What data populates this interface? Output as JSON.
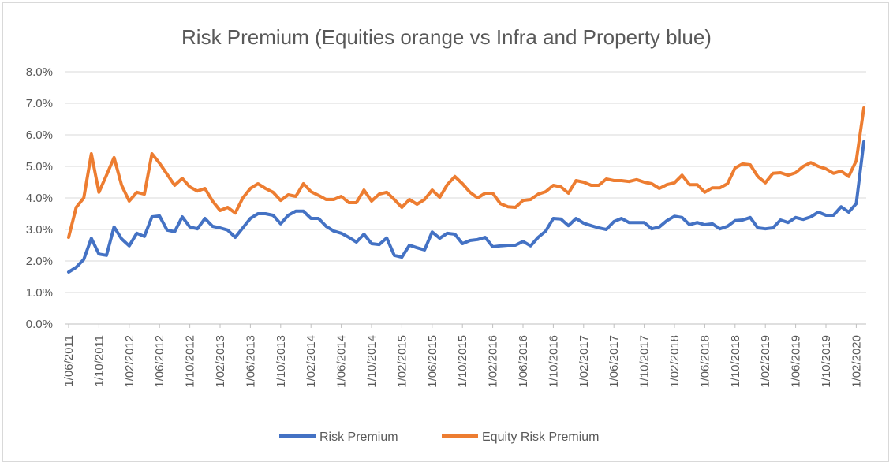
{
  "chart_data": {
    "type": "line",
    "title": "Risk Premium (Equities orange vs Infra and Property blue)",
    "xlabel": "",
    "ylabel": "",
    "ylim": [
      0,
      8
    ],
    "y_ticks": [
      "0.0%",
      "1.0%",
      "2.0%",
      "3.0%",
      "4.0%",
      "5.0%",
      "6.0%",
      "7.0%",
      "8.0%"
    ],
    "x_ticks": [
      "1/06/2011",
      "1/10/2011",
      "1/02/2012",
      "1/06/2012",
      "1/10/2012",
      "1/02/2013",
      "1/06/2013",
      "1/10/2013",
      "1/02/2014",
      "1/06/2014",
      "1/10/2014",
      "1/02/2015",
      "1/06/2015",
      "1/10/2015",
      "1/02/2016",
      "1/06/2016",
      "1/10/2016",
      "1/02/2017",
      "1/06/2017",
      "1/10/2017",
      "1/02/2018",
      "1/06/2018",
      "1/10/2018",
      "1/02/2019",
      "1/06/2019",
      "1/10/2019",
      "1/02/2020"
    ],
    "grid": "horizontal",
    "legend": "bottom",
    "series": [
      {
        "name": "Risk Premium",
        "color": "#4472c4",
        "values": [
          1.65,
          1.8,
          2.05,
          2.72,
          2.22,
          2.18,
          3.08,
          2.7,
          2.48,
          2.88,
          2.78,
          3.4,
          3.43,
          2.98,
          2.93,
          3.4,
          3.08,
          3.02,
          3.35,
          3.1,
          3.05,
          2.98,
          2.75,
          3.05,
          3.35,
          3.5,
          3.5,
          3.45,
          3.18,
          3.45,
          3.58,
          3.58,
          3.35,
          3.35,
          3.1,
          2.95,
          2.88,
          2.75,
          2.6,
          2.85,
          2.55,
          2.52,
          2.73,
          2.18,
          2.12,
          2.5,
          2.42,
          2.35,
          2.92,
          2.72,
          2.88,
          2.85,
          2.55,
          2.65,
          2.68,
          2.75,
          2.45,
          2.48,
          2.5,
          2.5,
          2.62,
          2.48,
          2.75,
          2.95,
          3.35,
          3.33,
          3.12,
          3.35,
          3.2,
          3.12,
          3.05,
          3.0,
          3.25,
          3.35,
          3.22,
          3.22,
          3.22,
          3.02,
          3.08,
          3.28,
          3.42,
          3.38,
          3.15,
          3.22,
          3.15,
          3.18,
          3.02,
          3.1,
          3.28,
          3.3,
          3.38,
          3.05,
          3.02,
          3.05,
          3.3,
          3.22,
          3.38,
          3.32,
          3.4,
          3.55,
          3.45,
          3.45,
          3.72,
          3.55,
          3.82,
          5.78
        ]
      },
      {
        "name": "Equity Risk Premium",
        "color": "#ed7d31",
        "values": [
          2.75,
          3.7,
          4.0,
          5.4,
          4.18,
          4.72,
          5.28,
          4.4,
          3.9,
          4.18,
          4.12,
          5.4,
          5.1,
          4.75,
          4.4,
          4.62,
          4.35,
          4.22,
          4.3,
          3.9,
          3.6,
          3.7,
          3.52,
          4.0,
          4.3,
          4.45,
          4.3,
          4.18,
          3.92,
          4.1,
          4.05,
          4.45,
          4.2,
          4.08,
          3.95,
          3.95,
          4.05,
          3.85,
          3.85,
          4.25,
          3.9,
          4.12,
          4.18,
          3.95,
          3.7,
          3.95,
          3.8,
          3.95,
          4.25,
          4.02,
          4.42,
          4.68,
          4.45,
          4.18,
          4.0,
          4.15,
          4.15,
          3.82,
          3.72,
          3.7,
          3.92,
          3.95,
          4.12,
          4.2,
          4.4,
          4.35,
          4.15,
          4.55,
          4.5,
          4.4,
          4.4,
          4.6,
          4.55,
          4.55,
          4.52,
          4.58,
          4.5,
          4.45,
          4.3,
          4.42,
          4.48,
          4.72,
          4.42,
          4.42,
          4.18,
          4.32,
          4.32,
          4.45,
          4.95,
          5.08,
          5.05,
          4.68,
          4.48,
          4.78,
          4.8,
          4.72,
          4.8,
          5.0,
          5.12,
          5.0,
          4.92,
          4.78,
          4.85,
          4.68,
          5.18,
          6.85
        ]
      }
    ]
  }
}
